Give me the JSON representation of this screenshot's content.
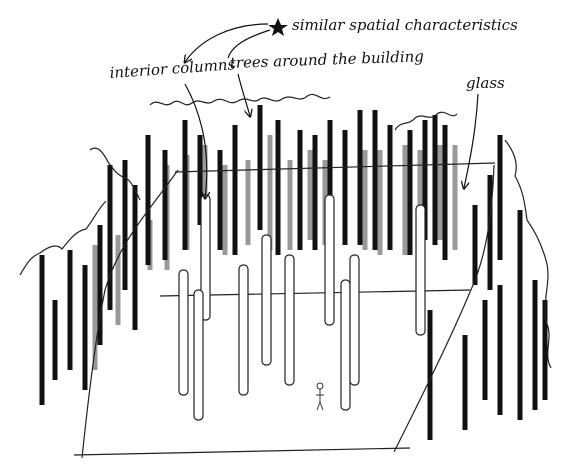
{
  "annotations": {
    "star_note": "similar spatial characteristics",
    "interior_columns": "interior columns",
    "trees": "trees around the building",
    "glass": "glass"
  }
}
